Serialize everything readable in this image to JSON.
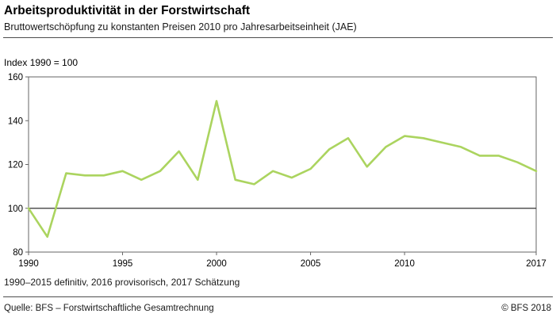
{
  "header": {
    "title": "Arbeitsproduktivität in der Forstwirtschaft",
    "subtitle": "Bruttowertschöpfung zu konstanten Preisen 2010 pro Jahresarbeitseinheit (JAE)"
  },
  "chart_data": {
    "type": "line",
    "index_label": "Index 1990 = 100",
    "x": [
      1990,
      1991,
      1992,
      1993,
      1994,
      1995,
      1996,
      1997,
      1998,
      1999,
      2000,
      2001,
      2002,
      2003,
      2004,
      2005,
      2006,
      2007,
      2008,
      2009,
      2010,
      2011,
      2012,
      2013,
      2014,
      2015,
      2016,
      2017
    ],
    "values": [
      100,
      87,
      116,
      115,
      115,
      117,
      113,
      117,
      126,
      113,
      149,
      113,
      111,
      117,
      114,
      118,
      127,
      132,
      119,
      128,
      133,
      132,
      130,
      128,
      124,
      124,
      121,
      117
    ],
    "series_name": "Arbeitsproduktivität (Index 1990 = 100)",
    "ylim": [
      80,
      160
    ],
    "yticks": [
      80,
      100,
      120,
      140,
      160
    ],
    "xticks": [
      1990,
      1995,
      2000,
      2005,
      2010,
      2017
    ],
    "reference_line": 100,
    "grid": false,
    "legend": "none",
    "line_color": "#abd45f",
    "axis_color": "#666666",
    "reference_line_color": "#333333",
    "tick_label_color": "#000000"
  },
  "footnote": "1990–2015 definitiv, 2016 provisorisch, 2017 Schätzung",
  "footer": {
    "source": "Quelle: BFS – Forstwirtschaftliche Gesamtrechnung",
    "copyright": "© BFS  2018"
  }
}
